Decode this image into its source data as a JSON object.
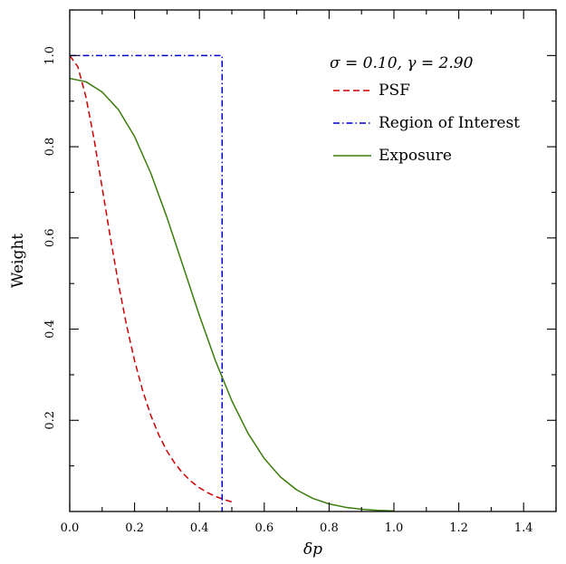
{
  "chart_data": {
    "type": "line",
    "xlabel": "δp",
    "ylabel": "Weight",
    "xlim": [
      0.0,
      1.5
    ],
    "ylim": [
      0.0,
      1.1
    ],
    "x_ticks": [
      0.0,
      0.2,
      0.4,
      0.6,
      0.8,
      1.0,
      1.2,
      1.4
    ],
    "x_tick_labels": [
      "0.0",
      "0.2",
      "0.4",
      "0.6",
      "0.8",
      "1.0",
      "1.2",
      "1.4"
    ],
    "y_ticks": [
      0.2,
      0.4,
      0.6,
      0.8,
      1.0
    ],
    "y_tick_labels": [
      "0.2",
      "0.4",
      "0.6",
      "0.8",
      "1.0"
    ],
    "grid": false,
    "legend": {
      "placement": "top-right",
      "title": "σ = 0.10, γ = 2.90"
    },
    "series": [
      {
        "name": "PSF",
        "color": "#cc0000",
        "style": "dashed",
        "x": [
          0.0,
          0.025,
          0.05,
          0.075,
          0.1,
          0.125,
          0.15,
          0.175,
          0.2,
          0.225,
          0.25,
          0.275,
          0.3,
          0.325,
          0.35,
          0.375,
          0.4,
          0.425,
          0.45,
          0.475,
          0.5
        ],
        "y": [
          1.0,
          0.9755,
          0.9091,
          0.8168,
          0.7104,
          0.6023,
          0.5006,
          0.4094,
          0.3308,
          0.265,
          0.211,
          0.1674,
          0.1325,
          0.1048,
          0.0829,
          0.0657,
          0.0521,
          0.0414,
          0.033,
          0.0264,
          0.0211
        ]
      },
      {
        "name": "Region of Interest",
        "color": "#0000cc",
        "style": "dashdot",
        "x": [
          0.0,
          0.47,
          0.47
        ],
        "y": [
          1.0,
          1.0,
          0.0
        ]
      },
      {
        "name": "Exposure",
        "color": "#3a7d0a",
        "style": "solid",
        "x": [
          0.0,
          0.05,
          0.1,
          0.15,
          0.2,
          0.25,
          0.3,
          0.35,
          0.4,
          0.45,
          0.5,
          0.55,
          0.6,
          0.65,
          0.7,
          0.75,
          0.8,
          0.85,
          0.9,
          0.95,
          1.0
        ],
        "y": [
          0.95,
          0.9425,
          0.92,
          0.8815,
          0.8225,
          0.7421,
          0.6447,
          0.5374,
          0.4299,
          0.3297,
          0.2427,
          0.1714,
          0.1162,
          0.0757,
          0.0474,
          0.0286,
          0.0166,
          0.0093,
          0.005,
          0.0026,
          0.0013
        ]
      }
    ]
  }
}
